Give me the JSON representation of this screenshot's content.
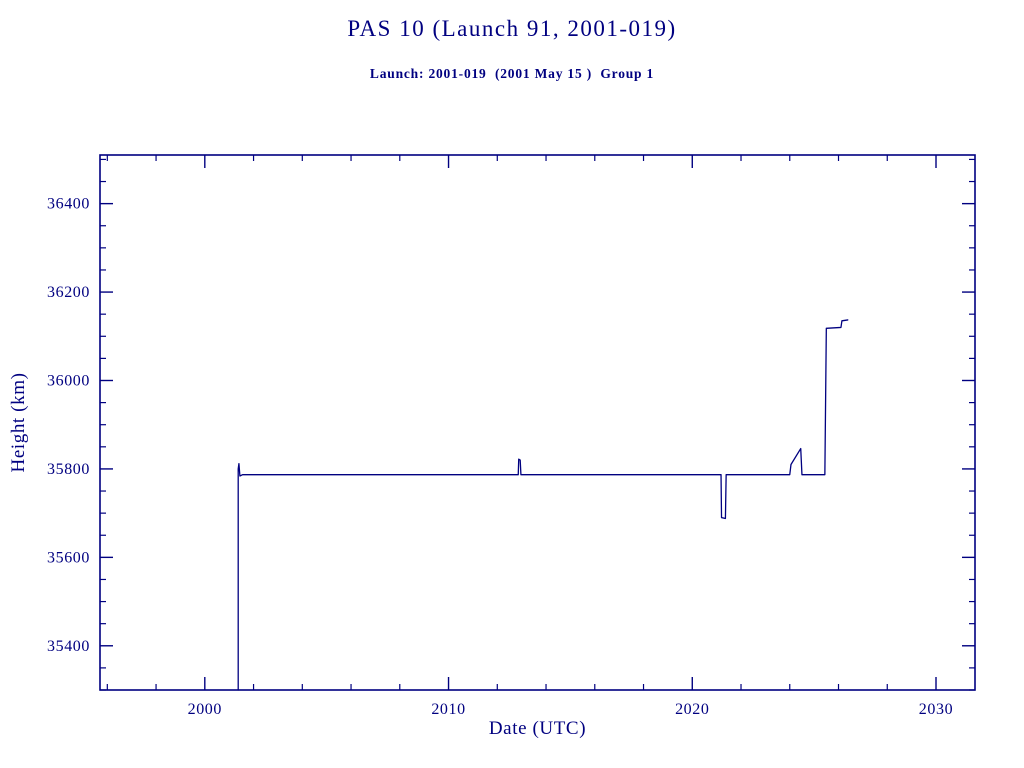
{
  "chart_data": {
    "type": "line",
    "title": "PAS 10 (Launch 91, 2001-019)",
    "subtitle": "Launch: 2001-019  (2001 May 15 )  Group 1",
    "xlabel": "Date (UTC)",
    "ylabel": "Height (km)",
    "xlim": [
      1995.7,
      2031.6
    ],
    "ylim": [
      35300,
      36510
    ],
    "x_major_ticks": [
      2000,
      2010,
      2020,
      2030
    ],
    "x_minor_step": 2,
    "y_major_ticks": [
      35400,
      35600,
      35800,
      36000,
      36200,
      36400
    ],
    "y_minor_step": 50,
    "grid": false,
    "legend": false,
    "line_color": "#000080",
    "axis_color": "#000080",
    "series": [
      {
        "name": "height-km",
        "points": [
          [
            2001.37,
            35300
          ],
          [
            2001.37,
            35800
          ],
          [
            2001.4,
            35812
          ],
          [
            2001.44,
            35784
          ],
          [
            2001.55,
            35787
          ],
          [
            2012.82,
            35787
          ],
          [
            2012.86,
            35787
          ],
          [
            2012.88,
            35822
          ],
          [
            2012.94,
            35820
          ],
          [
            2012.97,
            35787
          ],
          [
            2021.12,
            35787
          ],
          [
            2021.18,
            35787
          ],
          [
            2021.2,
            35690
          ],
          [
            2021.36,
            35688
          ],
          [
            2021.39,
            35787
          ],
          [
            2024.0,
            35787
          ],
          [
            2024.05,
            35810
          ],
          [
            2024.45,
            35846
          ],
          [
            2024.5,
            35787
          ],
          [
            2025.44,
            35787
          ],
          [
            2025.5,
            36118
          ],
          [
            2026.1,
            36120
          ],
          [
            2026.14,
            36135
          ],
          [
            2026.38,
            36137
          ]
        ]
      }
    ]
  }
}
